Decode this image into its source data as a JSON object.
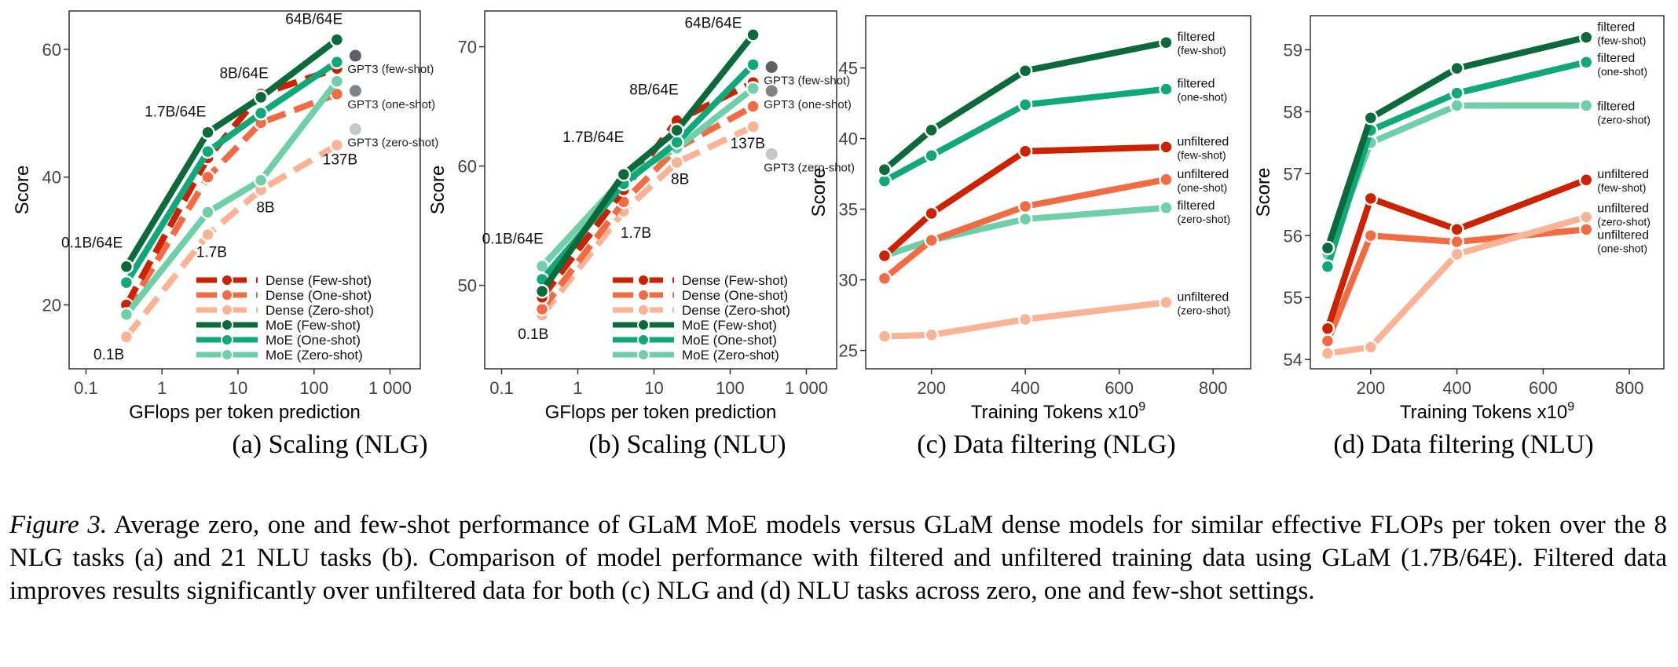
{
  "colors": {
    "dense_few": "#cc2200",
    "dense_one": "#f26b43",
    "dense_zero": "#fbb395",
    "moe_few": "#0b6a3a",
    "moe_one": "#0fa878",
    "moe_zero": "#6fcfa8",
    "gpt3_few": "#5a6066",
    "gpt3_one": "#7d848a",
    "gpt3_zero": "#c4c8cc",
    "unf_few": "#cc2200",
    "unf_one": "#f26b43",
    "unf_zero": "#fbb395",
    "filt_few": "#0b6a3a",
    "filt_one": "#0fa878",
    "filt_zero": "#6fcfa8"
  },
  "chart_data": [
    {
      "id": "a",
      "type": "line",
      "xscale": "log",
      "xlim": [
        0.06,
        2500
      ],
      "ylim": [
        10,
        66
      ],
      "xticks": [
        0.1,
        1,
        10,
        100,
        1000
      ],
      "xtick_labels": [
        "0.1",
        "1",
        "10",
        "100",
        "1 000"
      ],
      "yticks": [
        20,
        40,
        60
      ],
      "xlabel": "GFlops per token prediction",
      "ylabel": "Score",
      "legend_position": "bottom-right",
      "series": [
        {
          "name": "Dense (Few-shot)",
          "color_key": "dense_few",
          "style": "dense",
          "x": [
            0.34,
            4,
            20,
            200
          ],
          "y": [
            20,
            43,
            53,
            57
          ]
        },
        {
          "name": "Dense (One-shot)",
          "color_key": "dense_one",
          "style": "dense",
          "x": [
            0.34,
            4,
            20,
            200
          ],
          "y": [
            19,
            40,
            48.5,
            53
          ]
        },
        {
          "name": "Dense (Zero-shot)",
          "color_key": "dense_zero",
          "style": "dense",
          "x": [
            0.34,
            4,
            20,
            200
          ],
          "y": [
            15,
            31,
            38,
            45
          ]
        },
        {
          "name": "MoE (Few-shot)",
          "color_key": "moe_few",
          "style": "moe",
          "x": [
            0.34,
            4,
            20,
            200
          ],
          "y": [
            26,
            47,
            52.5,
            61.5
          ]
        },
        {
          "name": "MoE (One-shot)",
          "color_key": "moe_one",
          "style": "moe",
          "x": [
            0.34,
            4,
            20,
            200
          ],
          "y": [
            23.5,
            44,
            50,
            58
          ]
        },
        {
          "name": "MoE (Zero-shot)",
          "color_key": "moe_zero",
          "style": "moe",
          "x": [
            0.34,
            4,
            20,
            200
          ],
          "y": [
            18.5,
            34.5,
            39.5,
            55
          ]
        }
      ],
      "gpt3": [
        {
          "label": "GPT3 (few-shot)",
          "color_key": "gpt3_few",
          "x": 350,
          "y": 59
        },
        {
          "label": "GPT3 (one-shot)",
          "color_key": "gpt3_one",
          "x": 350,
          "y": 53.5
        },
        {
          "label": "GPT3 (zero-shot)",
          "color_key": "gpt3_zero",
          "x": 350,
          "y": 47.5
        }
      ],
      "annotations": [
        {
          "text": "64B/64E",
          "x": 100,
          "y": 64
        },
        {
          "text": "8B/64E",
          "x": 12,
          "y": 55.5
        },
        {
          "text": "1.7B/64E",
          "x": 1.5,
          "y": 49.5
        },
        {
          "text": "0.1B/64E",
          "x": 0.12,
          "y": 29
        },
        {
          "text": "1.7B",
          "x": 4.5,
          "y": 27.5
        },
        {
          "text": "8B",
          "x": 23,
          "y": 34.5
        },
        {
          "text": "137B",
          "x": 220,
          "y": 42
        },
        {
          "text": "0.1B",
          "x": 0.2,
          "y": 11.5
        }
      ]
    },
    {
      "id": "b",
      "type": "line",
      "xscale": "log",
      "xlim": [
        0.06,
        2500
      ],
      "ylim": [
        43,
        73
      ],
      "xticks": [
        0.1,
        1,
        10,
        100,
        1000
      ],
      "xtick_labels": [
        "0.1",
        "1",
        "10",
        "100",
        "1 000"
      ],
      "yticks": [
        50,
        60,
        70
      ],
      "xlabel": "GFlops per token prediction",
      "ylabel": "Score",
      "legend_position": "bottom-right",
      "series": [
        {
          "name": "Dense (Few-shot)",
          "color_key": "dense_few",
          "style": "dense",
          "x": [
            0.34,
            4,
            20,
            200
          ],
          "y": [
            49,
            58,
            63.8,
            67
          ]
        },
        {
          "name": "Dense (One-shot)",
          "color_key": "dense_one",
          "style": "dense",
          "x": [
            0.34,
            4,
            20,
            200
          ],
          "y": [
            48,
            57,
            61.5,
            65
          ]
        },
        {
          "name": "Dense (Zero-shot)",
          "color_key": "dense_zero",
          "style": "dense",
          "x": [
            0.34,
            4,
            20,
            200
          ],
          "y": [
            47.5,
            56.2,
            60.3,
            63.3
          ]
        },
        {
          "name": "MoE (Few-shot)",
          "color_key": "moe_few",
          "style": "moe",
          "x": [
            0.34,
            4,
            20,
            200
          ],
          "y": [
            49.5,
            59.3,
            63,
            71
          ]
        },
        {
          "name": "MoE (One-shot)",
          "color_key": "moe_one",
          "style": "moe",
          "x": [
            0.34,
            4,
            20,
            200
          ],
          "y": [
            50.5,
            58.5,
            62,
            68.5
          ]
        },
        {
          "name": "MoE (Zero-shot)",
          "color_key": "moe_zero",
          "style": "moe",
          "x": [
            0.34,
            4,
            20,
            200
          ],
          "y": [
            51.6,
            59,
            61.5,
            66.5
          ]
        }
      ],
      "gpt3": [
        {
          "label": "GPT3 (few-shot)",
          "color_key": "gpt3_few",
          "x": 350,
          "y": 68.3
        },
        {
          "label": "GPT3 (one-shot)",
          "color_key": "gpt3_one",
          "x": 350,
          "y": 66.3
        },
        {
          "label": "GPT3 (zero-shot)",
          "color_key": "gpt3_zero",
          "x": 350,
          "y": 61
        }
      ],
      "annotations": [
        {
          "text": "64B/64E",
          "x": 60,
          "y": 71.6
        },
        {
          "text": "8B/64E",
          "x": 10,
          "y": 66
        },
        {
          "text": "1.7B/64E",
          "x": 1.6,
          "y": 62
        },
        {
          "text": "0.1B/64E",
          "x": 0.14,
          "y": 53.5
        },
        {
          "text": "1.7B",
          "x": 5.8,
          "y": 54
        },
        {
          "text": "8B",
          "x": 22,
          "y": 58.5
        },
        {
          "text": "137B",
          "x": 170,
          "y": 61.5
        },
        {
          "text": "0.1B",
          "x": 0.26,
          "y": 45.5
        }
      ]
    },
    {
      "id": "c",
      "type": "line",
      "xscale": "linear",
      "xlim": [
        60,
        880
      ],
      "ylim": [
        23.7,
        48.7
      ],
      "xticks": [
        200,
        400,
        600,
        800
      ],
      "xtick_labels": [
        "200",
        "400",
        "600",
        "800"
      ],
      "yticks": [
        25,
        30,
        35,
        40,
        45
      ],
      "xlabel": "Training Tokens x10",
      "xlabel_exponent": "9",
      "ylabel": "Score",
      "series": [
        {
          "name": "filtered (few-shot)",
          "label_top": "filtered",
          "label_bottom": "(few-shot)",
          "color_key": "filt_few",
          "x": [
            100,
            200,
            400,
            700
          ],
          "y": [
            37.8,
            40.6,
            44.8,
            46.8
          ]
        },
        {
          "name": "filtered (one-shot)",
          "label_top": "filtered",
          "label_bottom": "(one-shot)",
          "color_key": "filt_one",
          "x": [
            100,
            200,
            400,
            700
          ],
          "y": [
            37.0,
            38.8,
            42.4,
            43.5
          ]
        },
        {
          "name": "unfiltered (few-shot)",
          "label_top": "unfiltered",
          "label_bottom": "(few-shot)",
          "color_key": "unf_few",
          "x": [
            100,
            200,
            400,
            700
          ],
          "y": [
            31.7,
            34.7,
            39.1,
            39.4
          ]
        },
        {
          "name": "unfiltered (one-shot)",
          "label_top": "unfiltered",
          "label_bottom": "(one-shot)",
          "color_key": "unf_one",
          "x": [
            100,
            200,
            400,
            700
          ],
          "y": [
            30.1,
            32.8,
            35.2,
            37.1
          ]
        },
        {
          "name": "filtered (zero-shot)",
          "label_top": "filtered",
          "label_bottom": "(zero-shot)",
          "color_key": "filt_zero",
          "x": [
            100,
            200,
            400,
            700
          ],
          "y": [
            31.7,
            32.8,
            34.3,
            35.1
          ]
        },
        {
          "name": "unfiltered (zero-shot)",
          "label_top": "unfiltered",
          "label_bottom": "(zero-shot)",
          "color_key": "unf_zero",
          "x": [
            100,
            200,
            400,
            700
          ],
          "y": [
            26.0,
            26.1,
            27.2,
            28.4
          ]
        }
      ]
    },
    {
      "id": "d",
      "type": "line",
      "xscale": "linear",
      "xlim": [
        60,
        880
      ],
      "ylim": [
        53.85,
        59.55
      ],
      "xticks": [
        200,
        400,
        600,
        800
      ],
      "xtick_labels": [
        "200",
        "400",
        "600",
        "800"
      ],
      "yticks": [
        54,
        55,
        56,
        57,
        58,
        59
      ],
      "xlabel": "Training Tokens x10",
      "xlabel_exponent": "9",
      "ylabel": "Score",
      "series": [
        {
          "name": "filtered (few-shot)",
          "label_top": "filtered",
          "label_bottom": "(few-shot)",
          "color_key": "filt_few",
          "x": [
            100,
            200,
            400,
            700
          ],
          "y": [
            55.8,
            57.9,
            58.7,
            59.2
          ]
        },
        {
          "name": "filtered (one-shot)",
          "label_top": "filtered",
          "label_bottom": "(one-shot)",
          "color_key": "filt_one",
          "x": [
            100,
            200,
            400,
            700
          ],
          "y": [
            55.5,
            57.7,
            58.3,
            58.8
          ]
        },
        {
          "name": "filtered (zero-shot)",
          "label_top": "filtered",
          "label_bottom": "(zero-shot)",
          "color_key": "filt_zero",
          "x": [
            100,
            200,
            400,
            700
          ],
          "y": [
            55.7,
            57.5,
            58.1,
            58.1
          ]
        },
        {
          "name": "unfiltered (few-shot)",
          "label_top": "unfiltered",
          "label_bottom": "(few-shot)",
          "color_key": "unf_few",
          "x": [
            100,
            200,
            400,
            700
          ],
          "y": [
            54.5,
            56.6,
            56.1,
            56.9
          ]
        },
        {
          "name": "unfiltered (zero-shot)",
          "label_top": "unfiltered",
          "label_bottom": "(zero-shot)",
          "color_key": "unf_zero",
          "x": [
            100,
            200,
            400,
            700
          ],
          "y": [
            54.1,
            54.2,
            55.7,
            56.3
          ]
        },
        {
          "name": "unfiltered (one-shot)",
          "label_top": "unfiltered",
          "label_bottom": "(one-shot)",
          "color_key": "unf_one",
          "x": [
            100,
            200,
            400,
            700
          ],
          "y": [
            54.3,
            56.0,
            55.9,
            56.1
          ]
        }
      ]
    }
  ],
  "subcaptions": {
    "a": "(a) Scaling (NLG)",
    "b": "(b) Scaling (NLU)",
    "c": "(c) Data filtering (NLG)",
    "d": "(d) Data filtering (NLU)"
  },
  "caption": {
    "label": "Figure 3.",
    "text": " Average zero, one and few-shot performance of GLaM MoE models versus GLaM dense models for similar effective FLOPs per token over the 8 NLG tasks (a) and 21 NLU tasks (b). Comparison of model performance with filtered and unfiltered training data using GLaM (1.7B/64E). Filtered data improves results significantly over unfiltered data for both (c) NLG and (d) NLU tasks across zero, one and few-shot settings."
  }
}
